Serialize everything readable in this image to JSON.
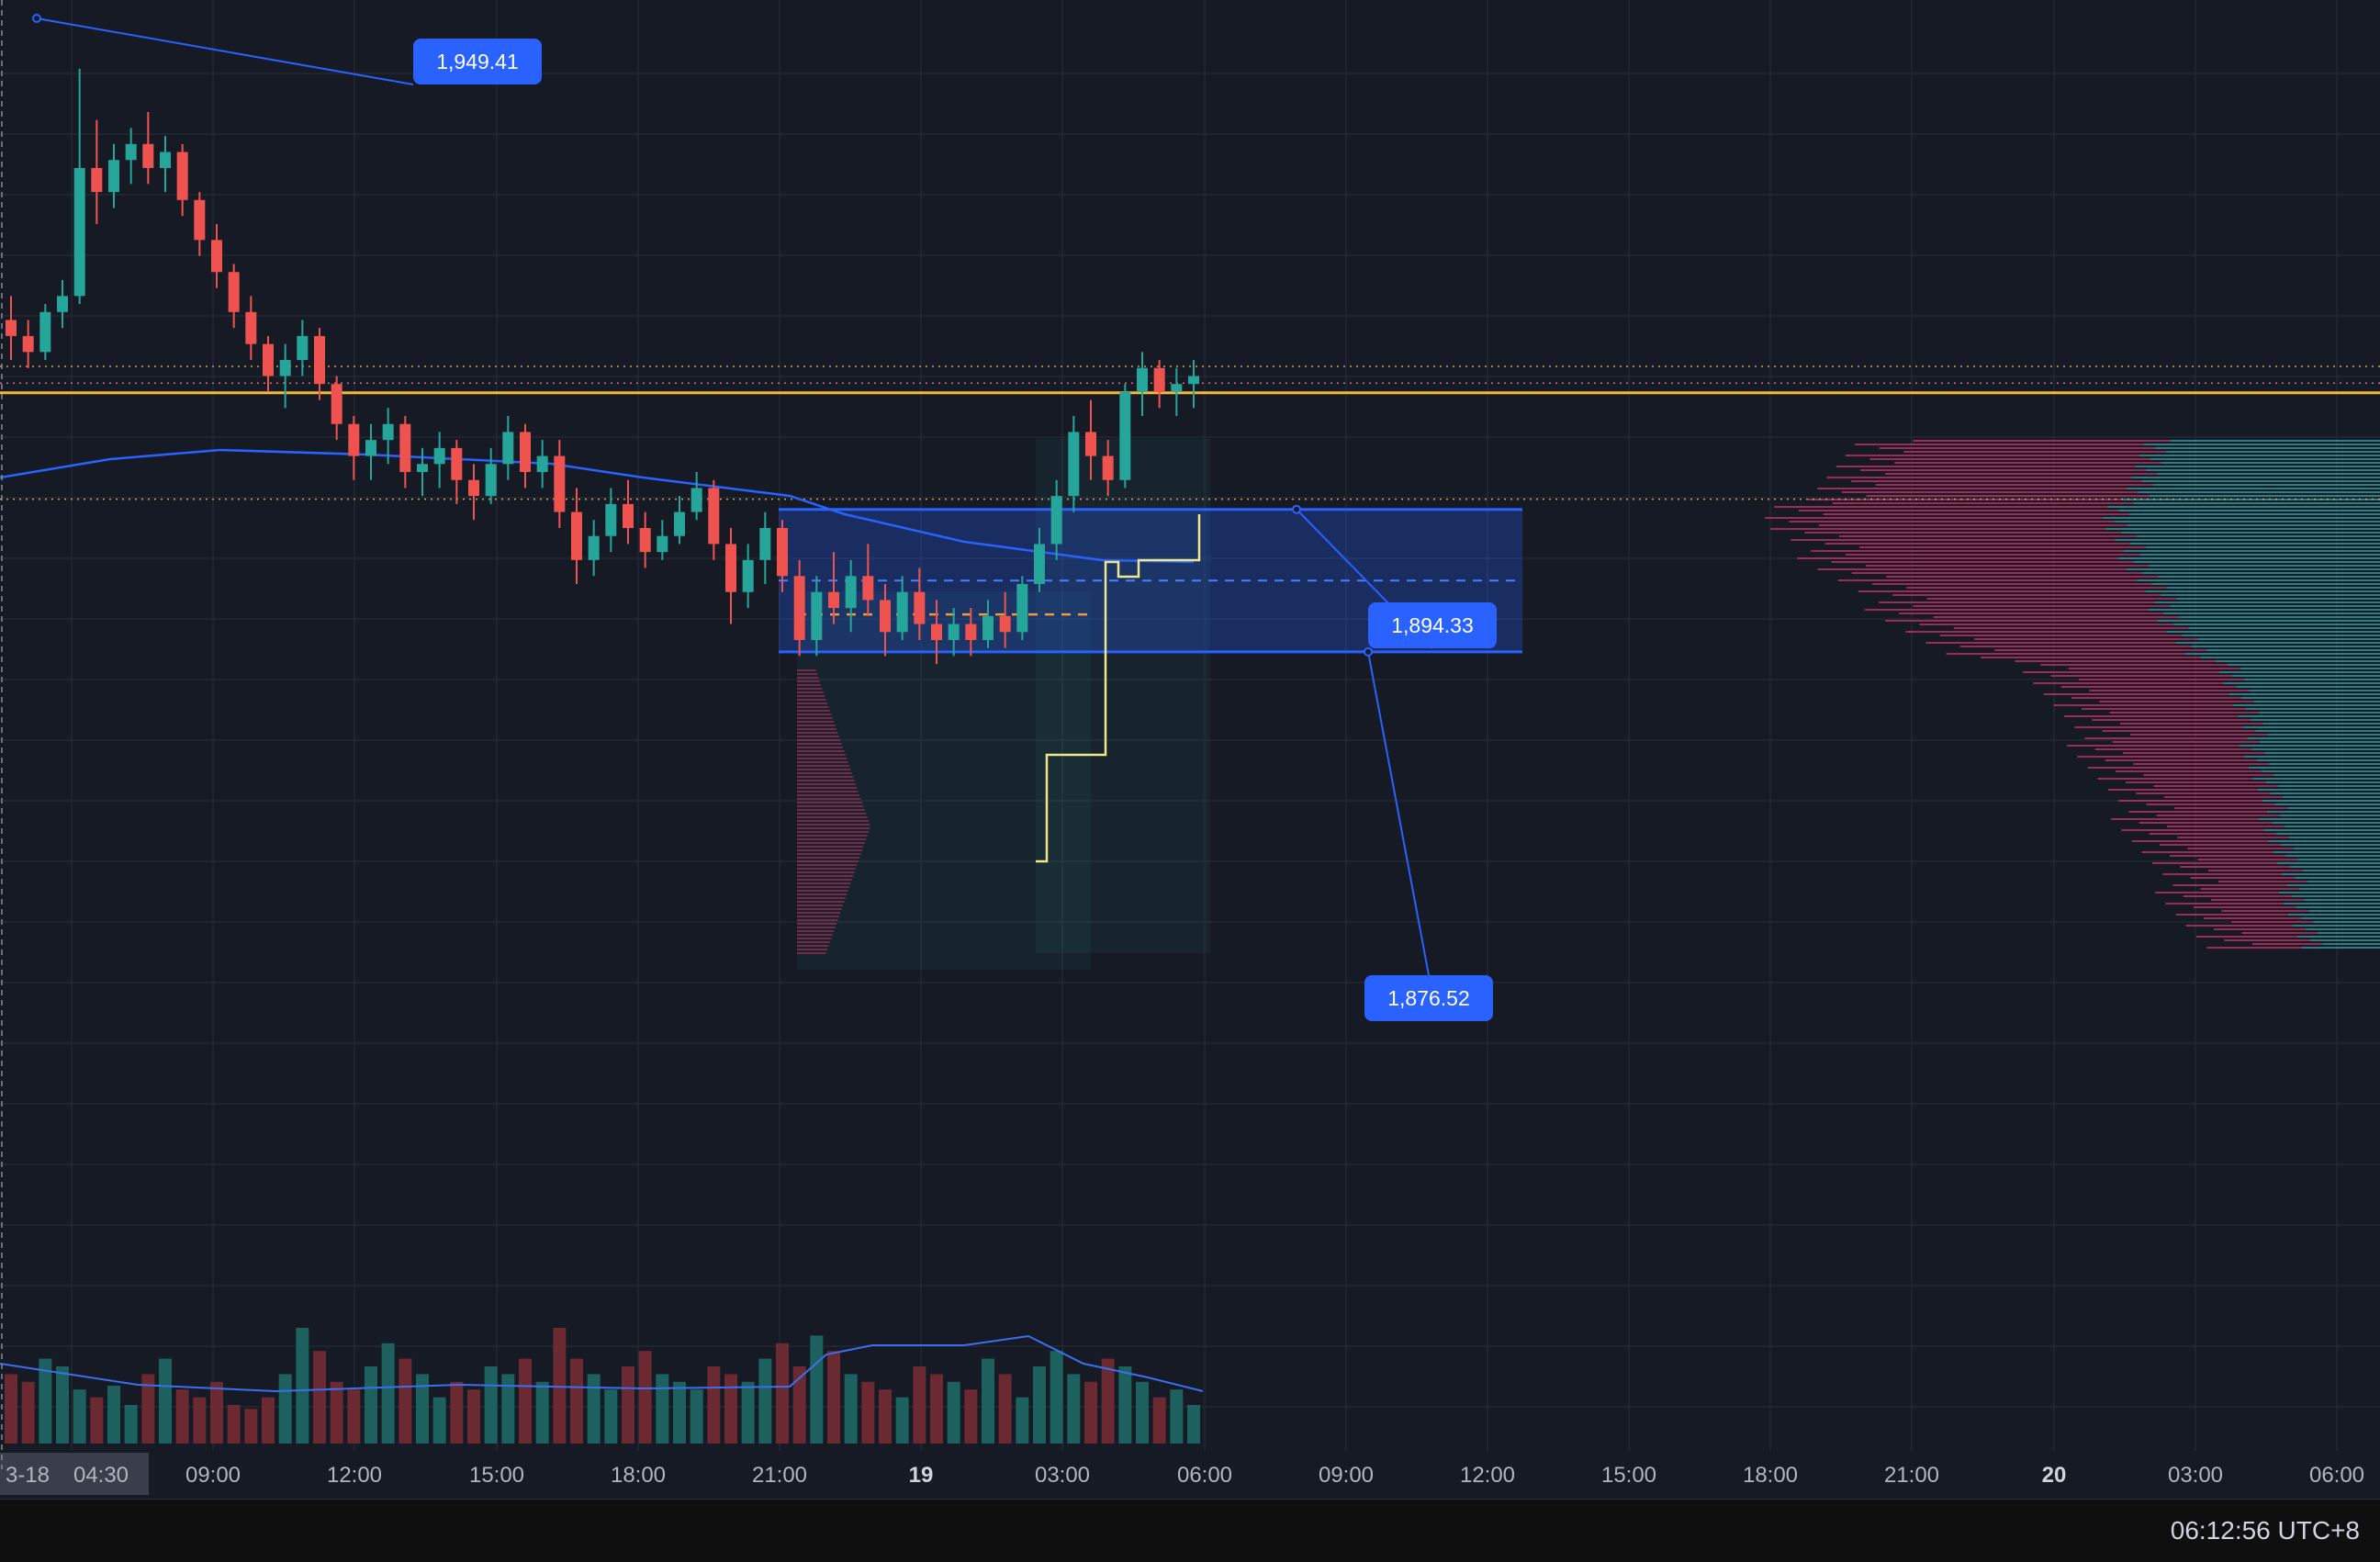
{
  "chart_data": {
    "type": "candlestick",
    "symbol": "",
    "y_range": [
      1826,
      1958
    ],
    "time_axis": {
      "labels": [
        {
          "text": "3-18",
          "bold": false,
          "highlight": true
        },
        {
          "text": "04:30",
          "bold": false,
          "highlight": true
        },
        {
          "text": "09:00",
          "bold": false
        },
        {
          "text": "12:00",
          "bold": false
        },
        {
          "text": "15:00",
          "bold": false
        },
        {
          "text": "18:00",
          "bold": false
        },
        {
          "text": "21:00",
          "bold": false
        },
        {
          "text": "19",
          "bold": true
        },
        {
          "text": "03:00",
          "bold": false
        },
        {
          "text": "06:00",
          "bold": false
        },
        {
          "text": "09:00",
          "bold": false
        },
        {
          "text": "12:00",
          "bold": false
        },
        {
          "text": "15:00",
          "bold": false
        },
        {
          "text": "18:00",
          "bold": false
        },
        {
          "text": "21:00",
          "bold": false
        },
        {
          "text": "20",
          "bold": true
        },
        {
          "text": "03:00",
          "bold": false
        },
        {
          "text": "06:00",
          "bold": false
        }
      ]
    },
    "callouts": [
      {
        "name": "high-callout",
        "text": "1,949.41",
        "price": 1949.41
      },
      {
        "name": "range-top-callout",
        "text": "1,894.33",
        "price": 1894.33
      },
      {
        "name": "range-bottom-callout",
        "text": "1,876.52",
        "price": 1876.52
      }
    ],
    "levels": {
      "current_price_line": 1908.9,
      "upper_dotted": 1912.2,
      "lower_dotted": 1895.6,
      "range_top": 1894.33,
      "range_bottom": 1876.52
    },
    "colors": {
      "up": "#26a69a",
      "down": "#ef5350",
      "current_price": "#f5b93a",
      "range_fill": "#2962ff",
      "vwap": "#2962ff",
      "step_line": "#f0e68c",
      "background": "#161a25",
      "grid": "#242733"
    },
    "candles_ohlc": [
      [
        1918,
        1921,
        1913,
        1916
      ],
      [
        1916,
        1918,
        1912,
        1914
      ],
      [
        1914,
        1920,
        1913,
        1919
      ],
      [
        1919,
        1923,
        1917,
        1921
      ],
      [
        1921,
        1949.4,
        1920,
        1937
      ],
      [
        1937,
        1943,
        1930,
        1934
      ],
      [
        1934,
        1940,
        1932,
        1938
      ],
      [
        1938,
        1942,
        1935,
        1940
      ],
      [
        1940,
        1944,
        1935,
        1937
      ],
      [
        1937,
        1941,
        1934,
        1939
      ],
      [
        1939,
        1940,
        1931,
        1933
      ],
      [
        1933,
        1934,
        1926,
        1928
      ],
      [
        1928,
        1930,
        1922,
        1924
      ],
      [
        1924,
        1925,
        1917,
        1919
      ],
      [
        1919,
        1921,
        1913,
        1915
      ],
      [
        1915,
        1916,
        1909,
        1911
      ],
      [
        1911,
        1915,
        1907,
        1913
      ],
      [
        1913,
        1918,
        1911,
        1916
      ],
      [
        1916,
        1917,
        1908,
        1910
      ],
      [
        1910,
        1911,
        1903,
        1905
      ],
      [
        1905,
        1906,
        1898,
        1901
      ],
      [
        1901,
        1905,
        1898,
        1903
      ],
      [
        1903,
        1907,
        1900,
        1905
      ],
      [
        1905,
        1906,
        1897,
        1899
      ],
      [
        1899,
        1902,
        1896,
        1900
      ],
      [
        1900,
        1904,
        1897,
        1902
      ],
      [
        1902,
        1903,
        1895,
        1898
      ],
      [
        1898,
        1900,
        1893,
        1896
      ],
      [
        1896,
        1902,
        1895,
        1900
      ],
      [
        1900,
        1906,
        1898,
        1904
      ],
      [
        1904,
        1905,
        1897,
        1899
      ],
      [
        1899,
        1903,
        1897,
        1901
      ],
      [
        1901,
        1903,
        1892,
        1894
      ],
      [
        1894,
        1897,
        1885,
        1888
      ],
      [
        1888,
        1893,
        1886,
        1891
      ],
      [
        1891,
        1897,
        1889,
        1895
      ],
      [
        1895,
        1898,
        1890,
        1892
      ],
      [
        1892,
        1894,
        1887,
        1889
      ],
      [
        1889,
        1893,
        1888,
        1891
      ],
      [
        1891,
        1896,
        1890,
        1894
      ],
      [
        1894,
        1899,
        1893,
        1897
      ],
      [
        1897,
        1898,
        1888,
        1890
      ],
      [
        1890,
        1892,
        1880,
        1884
      ],
      [
        1884,
        1890,
        1882,
        1888
      ],
      [
        1888,
        1894,
        1885,
        1892
      ],
      [
        1892,
        1893,
        1884,
        1886
      ],
      [
        1886,
        1888,
        1876,
        1878
      ],
      [
        1878,
        1886,
        1876,
        1884
      ],
      [
        1884,
        1889,
        1880,
        1882
      ],
      [
        1882,
        1888,
        1879,
        1886
      ],
      [
        1886,
        1890,
        1881,
        1883
      ],
      [
        1883,
        1885,
        1876,
        1879
      ],
      [
        1879,
        1886,
        1878,
        1884
      ],
      [
        1884,
        1887,
        1878,
        1880
      ],
      [
        1880,
        1883,
        1875,
        1878
      ],
      [
        1878,
        1882,
        1876,
        1880
      ],
      [
        1880,
        1882,
        1876,
        1878
      ],
      [
        1878,
        1883,
        1877,
        1881
      ],
      [
        1881,
        1884,
        1877,
        1879
      ],
      [
        1879,
        1886,
        1878,
        1885
      ],
      [
        1885,
        1892,
        1884,
        1890
      ],
      [
        1890,
        1898,
        1888,
        1896
      ],
      [
        1896,
        1906,
        1894,
        1904
      ],
      [
        1904,
        1908,
        1898,
        1901
      ],
      [
        1901,
        1903,
        1896,
        1898
      ],
      [
        1898,
        1910,
        1897,
        1909
      ],
      [
        1909,
        1914,
        1906,
        1912
      ],
      [
        1912,
        1913,
        1907,
        1909
      ],
      [
        1909,
        1912,
        1906,
        1910
      ],
      [
        1910,
        1913,
        1907,
        1911
      ]
    ],
    "volume_scale_max": 100,
    "volumes": [
      18,
      16,
      22,
      20,
      14,
      12,
      15,
      10,
      18,
      22,
      14,
      12,
      16,
      10,
      9,
      12,
      18,
      30,
      24,
      16,
      14,
      20,
      26,
      22,
      18,
      12,
      16,
      14,
      20,
      18,
      22,
      16,
      30,
      22,
      18,
      14,
      20,
      24,
      18,
      16,
      14,
      20,
      18,
      16,
      22,
      26,
      20,
      28,
      24,
      18,
      16,
      14,
      12,
      20,
      18,
      16,
      14,
      22,
      18,
      12,
      20,
      24,
      18,
      16,
      22,
      20,
      16,
      12,
      14,
      10
    ]
  },
  "status": {
    "clock": "06:12:56 UTC+8"
  }
}
